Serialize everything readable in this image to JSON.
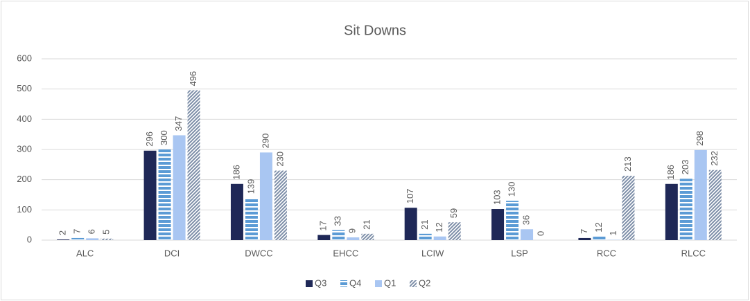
{
  "chart_data": {
    "type": "bar",
    "title": "Sit Downs",
    "categories": [
      "ALC",
      "DCI",
      "DWCC",
      "EHCC",
      "LCIW",
      "LSP",
      "RCC",
      "RLCC"
    ],
    "series": [
      {
        "name": "Q3",
        "color": "#1f2857",
        "pattern": "solid",
        "values": [
          2,
          296,
          186,
          17,
          107,
          103,
          7,
          186
        ]
      },
      {
        "name": "Q4",
        "color": "#5b9bd5",
        "pattern": "horizontal",
        "values": [
          7,
          300,
          139,
          33,
          21,
          130,
          12,
          203
        ]
      },
      {
        "name": "Q1",
        "color": "#a9c6f2",
        "pattern": "solid",
        "values": [
          6,
          347,
          290,
          9,
          12,
          36,
          1,
          298
        ]
      },
      {
        "name": "Q2",
        "color": "#7d8ea8",
        "pattern": "diagonal",
        "values": [
          5,
          496,
          230,
          21,
          59,
          0,
          213,
          232
        ]
      }
    ],
    "ylim": [
      0,
      600
    ],
    "yticks": [
      0,
      100,
      200,
      300,
      400,
      500,
      600
    ],
    "grid": true,
    "legend": "bottom"
  }
}
